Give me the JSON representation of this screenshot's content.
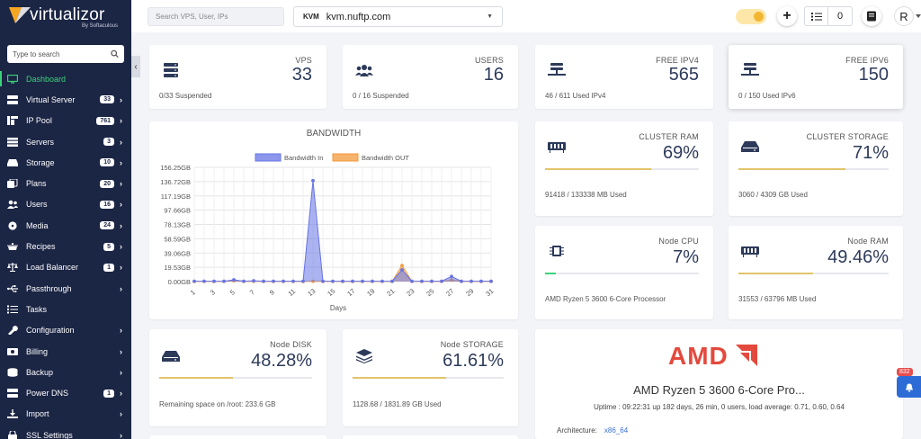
{
  "brand": {
    "name": "virtualizor",
    "by": "By Softaculous"
  },
  "sidebar": {
    "search_placeholder": "Type to search",
    "items": [
      {
        "label": "Dashboard",
        "badge": "",
        "chevron": false,
        "icon": "monitor-icon",
        "active": true
      },
      {
        "label": "Virtual Server",
        "badge": "33",
        "chevron": true,
        "icon": "server-icon"
      },
      {
        "label": "IP Pool",
        "badge": "761",
        "chevron": true,
        "icon": "ip-icon"
      },
      {
        "label": "Servers",
        "badge": "3",
        "chevron": true,
        "icon": "servers-icon"
      },
      {
        "label": "Storage",
        "badge": "10",
        "chevron": true,
        "icon": "drive-icon"
      },
      {
        "label": "Plans",
        "badge": "20",
        "chevron": true,
        "icon": "copy-icon"
      },
      {
        "label": "Users",
        "badge": "16",
        "chevron": true,
        "icon": "users-icon"
      },
      {
        "label": "Media",
        "badge": "24",
        "chevron": true,
        "icon": "disc-icon"
      },
      {
        "label": "Recipes",
        "badge": "5",
        "chevron": true,
        "icon": "recipes-icon"
      },
      {
        "label": "Load Balancer",
        "badge": "1",
        "chevron": true,
        "icon": "balance-icon"
      },
      {
        "label": "Passthrough",
        "badge": "",
        "chevron": true,
        "icon": "usb-icon"
      },
      {
        "label": "Tasks",
        "badge": "",
        "chevron": false,
        "icon": "tasks-icon"
      },
      {
        "label": "Configuration",
        "badge": "",
        "chevron": true,
        "icon": "wrench-icon"
      },
      {
        "label": "Billing",
        "badge": "",
        "chevron": true,
        "icon": "dollar-icon"
      },
      {
        "label": "Backup",
        "badge": "",
        "chevron": true,
        "icon": "database-icon"
      },
      {
        "label": "Power DNS",
        "badge": "1",
        "chevron": true,
        "icon": "dns-icon"
      },
      {
        "label": "Import",
        "badge": "",
        "chevron": true,
        "icon": "import-icon"
      },
      {
        "label": "SSL Settings",
        "badge": "",
        "chevron": true,
        "icon": "lock-icon"
      }
    ]
  },
  "topbar": {
    "search_placeholder": "Search VPS, User, IPs",
    "server_type": "KVM",
    "server_host": "kvm.nuftp.com",
    "tasks_count": "0",
    "avatar_letter": "R"
  },
  "cards": {
    "vps": {
      "title": "VPS",
      "value": "33",
      "foot": "0/33 Suspended"
    },
    "users": {
      "title": "USERS",
      "value": "16",
      "foot": "0 / 16 Suspended"
    },
    "ipv4": {
      "title": "FREE IPV4",
      "value": "565",
      "foot": "46 / 611 Used IPv4"
    },
    "ipv6": {
      "title": "FREE IPV6",
      "value": "150",
      "foot": "0 / 150 Used IPv6"
    },
    "cluster_ram": {
      "title": "CLUSTER RAM",
      "value": "69%",
      "foot": "91418 / 133338 MB Used",
      "fill": 0.69
    },
    "cluster_storage": {
      "title": "CLUSTER STORAGE",
      "value": "71%",
      "foot": "3060 / 4309 GB Used",
      "fill": 0.71
    },
    "node_cpu": {
      "title": "Node CPU",
      "value": "7%",
      "foot": "AMD Ryzen 5 3600 6-Core Processor",
      "fill": 0.07
    },
    "node_ram": {
      "title": "Node RAM",
      "value": "49.46%",
      "foot": "31553 / 63796 MB Used",
      "fill": 0.4946
    },
    "node_disk": {
      "title": "Node DISK",
      "value": "48.28%",
      "foot": "Remaining space on /root: 233.6 GB",
      "fill": 0.4828
    },
    "node_storage": {
      "title": "Node STORAGE",
      "value": "61.61%",
      "foot": "1128.68 / 1831.89 GB Used",
      "fill": 0.6161
    }
  },
  "colors": {
    "sidebar": "#1b2544",
    "accent_green": "#3bd37a",
    "bar_yellow": "#e2c46b",
    "bar_green": "#3bd37a",
    "amd_red": "#e4493d",
    "series_in": "#6674e6",
    "series_out": "#f39a3a"
  },
  "cpu_info": {
    "logo": "AMD",
    "name": "AMD Ryzen 5 3600 6-Core Pro...",
    "uptime": "Uptime : 09:22:31 up 182 days, 26 min, 0 users, load average: 0.71, 0.60, 0.64",
    "arch_label": "Architecture:",
    "arch_value": "x86_64"
  },
  "notification": {
    "count": "832"
  },
  "chart_data": {
    "type": "area",
    "title": "BANDWIDTH",
    "xlabel": "Days",
    "ylabel": "",
    "x": [
      1,
      2,
      3,
      4,
      5,
      6,
      7,
      8,
      9,
      10,
      11,
      12,
      13,
      14,
      15,
      16,
      17,
      18,
      19,
      20,
      21,
      22,
      23,
      24,
      25,
      26,
      27,
      28,
      29,
      30,
      31
    ],
    "x_ticks": [
      "1",
      "3",
      "5",
      "7",
      "9",
      "11",
      "13",
      "15",
      "17",
      "19",
      "21",
      "23",
      "25",
      "27",
      "29",
      "31"
    ],
    "y_ticks": [
      "0.00GB",
      "19.53GB",
      "39.06GB",
      "58.59GB",
      "78.13GB",
      "97.66GB",
      "117.19GB",
      "136.72GB",
      "156.25GB"
    ],
    "ylim": [
      0,
      156.25
    ],
    "grid": true,
    "legend": "top",
    "series": [
      {
        "name": "Bandwidth In",
        "values": [
          0.5,
          0.5,
          0.5,
          0.5,
          2.5,
          0.5,
          1,
          0.5,
          0.5,
          0.5,
          0.5,
          0.5,
          138,
          0.5,
          0.5,
          0.5,
          0.5,
          0.5,
          0.5,
          0.5,
          0.5,
          16,
          0.5,
          0.5,
          0.5,
          0.5,
          7,
          0.5,
          0.5,
          0.5,
          0.5
        ]
      },
      {
        "name": "Bandwidth OUT",
        "values": [
          0.2,
          0.2,
          0.2,
          0.2,
          1,
          0.2,
          0.3,
          0.2,
          0.2,
          0.2,
          0.2,
          0.2,
          0.3,
          0.2,
          0.2,
          0.2,
          0.2,
          0.2,
          0.2,
          0.2,
          0.2,
          22,
          0.2,
          0.2,
          0.2,
          0.2,
          2,
          0.2,
          0.2,
          0.2,
          0.2
        ]
      }
    ]
  }
}
